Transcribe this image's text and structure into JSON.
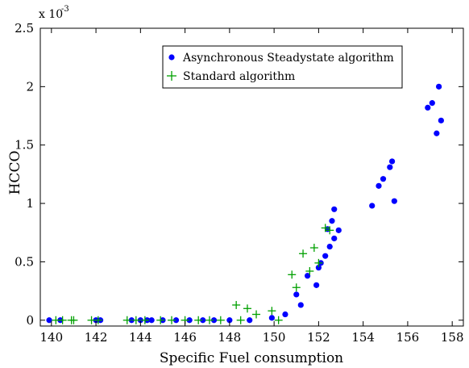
{
  "chart_data": {
    "type": "scatter",
    "xlabel": "Specific Fuel consumption",
    "ylabel": "HCCO",
    "xlim": [
      139.5,
      158.5
    ],
    "ylim": [
      -5e-05,
      0.0025
    ],
    "xticks": [
      140,
      142,
      144,
      146,
      148,
      150,
      152,
      154,
      156,
      158
    ],
    "yticks": [
      0,
      0.0005,
      0.001,
      0.0015,
      0.002,
      0.0025
    ],
    "ytick_labels": [
      "0",
      "0.5",
      "1",
      "1.5",
      "2",
      "2.5"
    ],
    "y_multiplier_base": "x 10",
    "y_multiplier_exp": "-3",
    "legend_position": "top-right",
    "grid": false,
    "series": [
      {
        "name": "Asynchronous Steadystate algorithm",
        "marker": "dot",
        "color": "#0000ff",
        "points": [
          [
            139.9,
            0
          ],
          [
            140.4,
            0
          ],
          [
            142.0,
            0
          ],
          [
            142.2,
            0
          ],
          [
            143.6,
            0
          ],
          [
            144.0,
            0
          ],
          [
            144.3,
            0
          ],
          [
            144.5,
            0
          ],
          [
            145.0,
            0
          ],
          [
            145.6,
            0
          ],
          [
            146.2,
            0
          ],
          [
            146.8,
            0
          ],
          [
            147.3,
            0
          ],
          [
            148.0,
            0
          ],
          [
            148.9,
            0
          ],
          [
            149.9,
            2e-05
          ],
          [
            150.5,
            5e-05
          ],
          [
            151.0,
            0.00022
          ],
          [
            151.2,
            0.00013
          ],
          [
            151.5,
            0.00038
          ],
          [
            151.9,
            0.0003
          ],
          [
            152.0,
            0.00045
          ],
          [
            152.1,
            0.00049
          ],
          [
            152.3,
            0.00055
          ],
          [
            152.4,
            0.00078
          ],
          [
            152.5,
            0.00063
          ],
          [
            152.6,
            0.00085
          ],
          [
            152.7,
            0.0007
          ],
          [
            152.7,
            0.00095
          ],
          [
            152.9,
            0.00077
          ],
          [
            154.4,
            0.00098
          ],
          [
            154.7,
            0.00115
          ],
          [
            154.9,
            0.00121
          ],
          [
            155.2,
            0.00131
          ],
          [
            155.3,
            0.00136
          ],
          [
            155.4,
            0.00102
          ],
          [
            156.9,
            0.00182
          ],
          [
            157.1,
            0.00186
          ],
          [
            157.3,
            0.0016
          ],
          [
            157.4,
            0.002
          ],
          [
            157.5,
            0.00171
          ]
        ]
      },
      {
        "name": "Standard algorithm",
        "marker": "plus",
        "color": "#00a000",
        "points": [
          [
            140.2,
            0
          ],
          [
            140.5,
            0
          ],
          [
            140.9,
            0
          ],
          [
            141.0,
            0
          ],
          [
            141.8,
            0
          ],
          [
            142.1,
            0
          ],
          [
            143.4,
            0
          ],
          [
            143.8,
            0
          ],
          [
            144.2,
            0
          ],
          [
            144.9,
            0
          ],
          [
            145.4,
            0
          ],
          [
            146.0,
            0
          ],
          [
            146.6,
            0
          ],
          [
            147.1,
            0
          ],
          [
            147.6,
            0
          ],
          [
            148.3,
            0.00013
          ],
          [
            148.8,
            0.0001
          ],
          [
            149.2,
            5e-05
          ],
          [
            148.5,
            0
          ],
          [
            149.9,
            8e-05
          ],
          [
            150.2,
            0
          ],
          [
            150.8,
            0.00039
          ],
          [
            151.0,
            0.00028
          ],
          [
            151.3,
            0.00057
          ],
          [
            151.6,
            0.00042
          ],
          [
            151.8,
            0.00062
          ],
          [
            152.0,
            0.00049
          ],
          [
            152.3,
            0.00079
          ],
          [
            152.5,
            0.00077
          ]
        ]
      }
    ]
  }
}
